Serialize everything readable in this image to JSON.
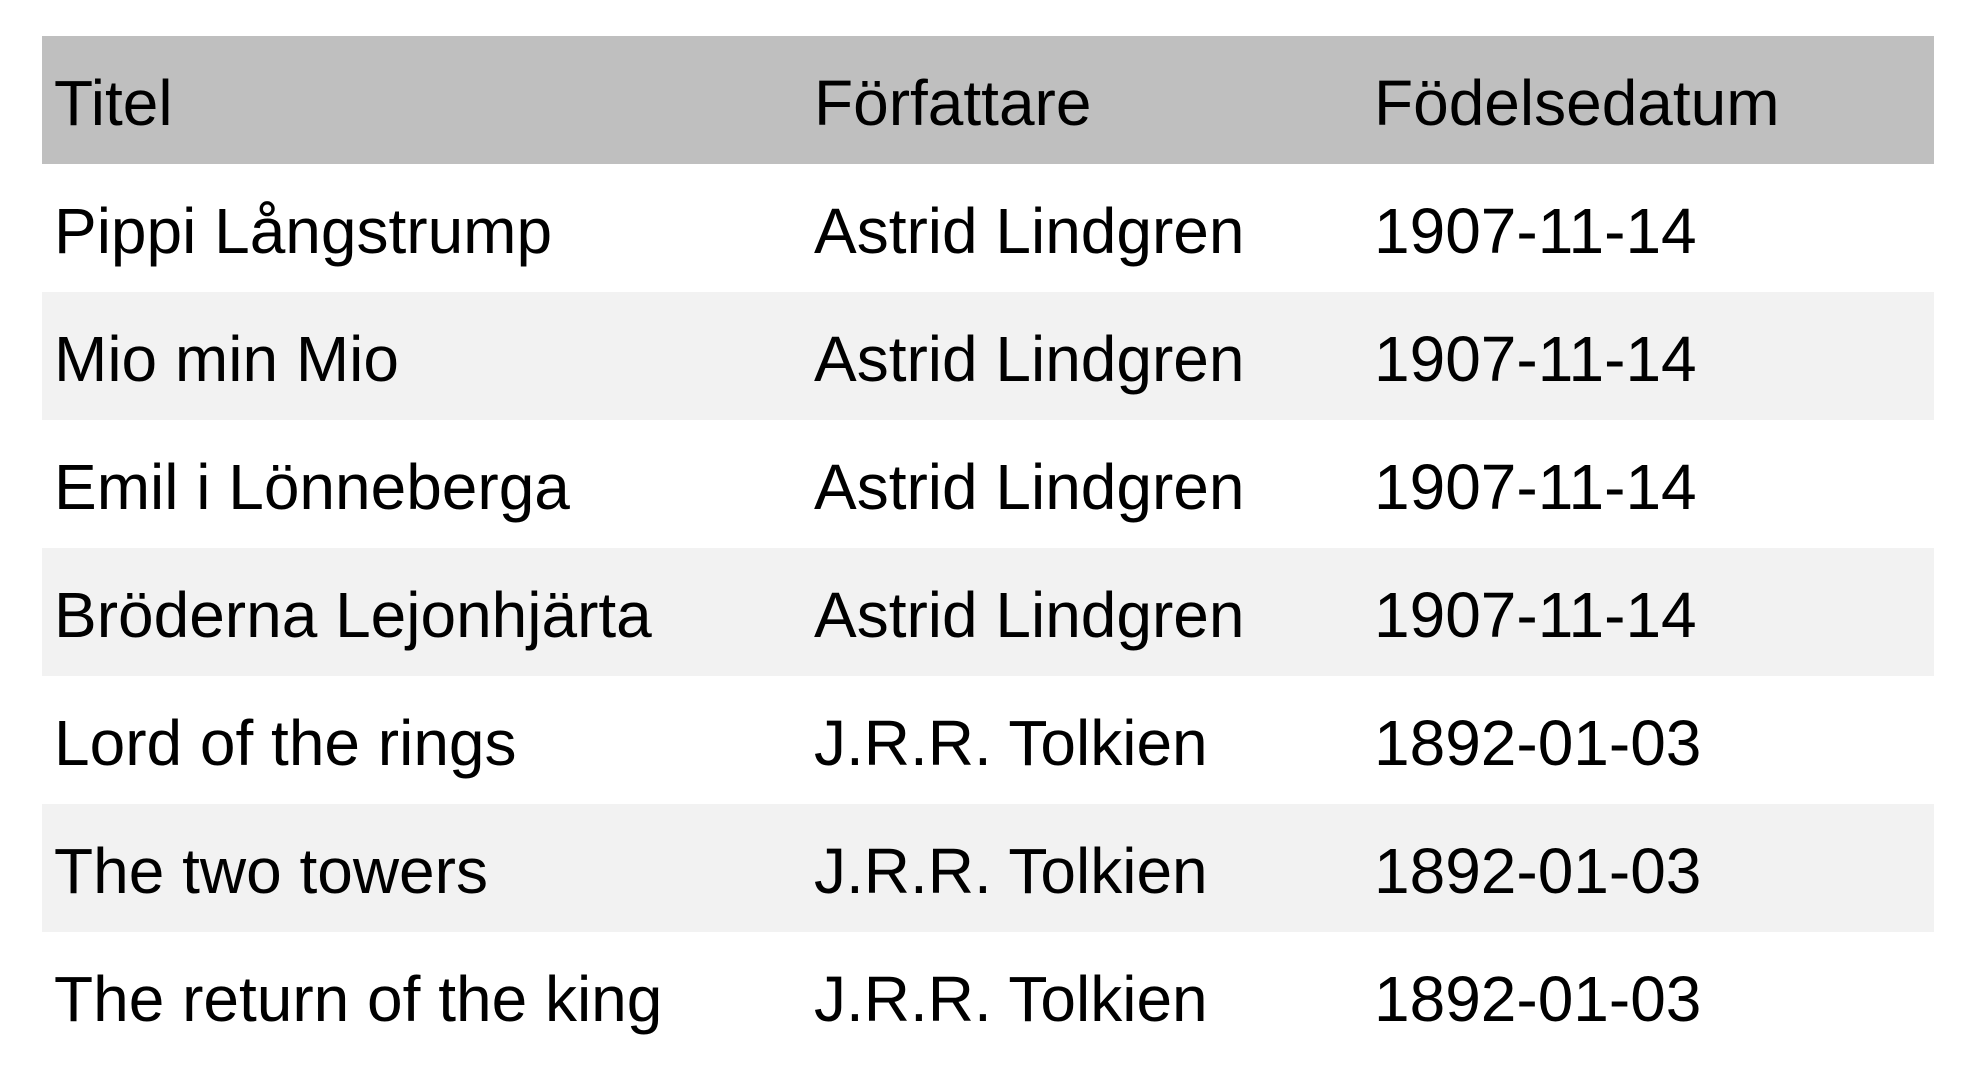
{
  "table": {
    "columns": [
      "Titel",
      "Författare",
      "Födelsedatum"
    ],
    "rows": [
      [
        "Pippi Långstrump",
        "Astrid Lindgren",
        "1907-11-14"
      ],
      [
        "Mio min Mio",
        "Astrid Lindgren",
        "1907-11-14"
      ],
      [
        "Emil i Lönneberga",
        "Astrid Lindgren",
        "1907-11-14"
      ],
      [
        "Bröderna Lejonhjärta",
        "Astrid Lindgren",
        "1907-11-14"
      ],
      [
        "Lord of the rings",
        "J.R.R. Tolkien",
        "1892-01-03"
      ],
      [
        "The two towers",
        "J.R.R. Tolkien",
        "1892-01-03"
      ],
      [
        "The return of the king",
        "J.R.R. Tolkien",
        "1892-01-03"
      ]
    ]
  },
  "colors": {
    "header_bg": "#bfbfbf",
    "row_alt_bg": "#f2f2f2",
    "row_bg": "#ffffff",
    "text": "#000000"
  }
}
